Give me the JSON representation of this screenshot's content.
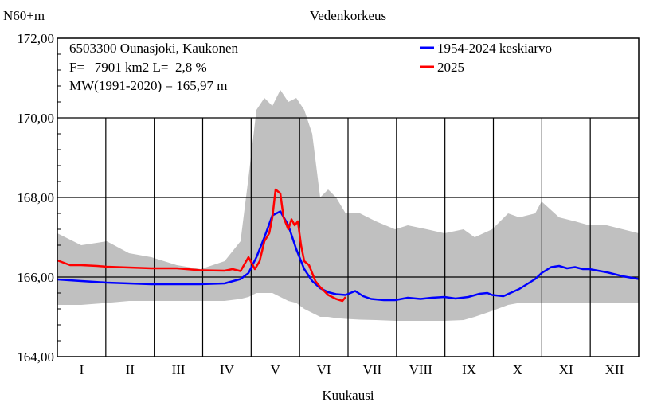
{
  "chart_data": {
    "type": "line",
    "title": "Vedenkorkeus",
    "ylabel": "N60+m",
    "xlabel": "Kuukausi",
    "ylim": [
      164,
      172
    ],
    "y_ticks": [
      "164,00",
      "166,00",
      "168,00",
      "170,00",
      "172,00"
    ],
    "y_tick_values": [
      164,
      166,
      168,
      170,
      172
    ],
    "x_range_days": [
      0,
      365
    ],
    "categories": [
      "I",
      "II",
      "III",
      "IV",
      "V",
      "VI",
      "VII",
      "VIII",
      "IX",
      "X",
      "XI",
      "XII"
    ],
    "info_lines": [
      "6503300 Ounasjoki, Kaukonen",
      "F=   7901 km2 L=  2,8 %",
      "MW(1991-2020) = 165,97 m"
    ],
    "grid": true,
    "legend_position": "top-right",
    "colors": {
      "mean": "#0000ff",
      "current": "#ff0000",
      "band": "#c0c0c0",
      "grid": "#000000"
    },
    "band_range": {
      "x": [
        0,
        15,
        31,
        45,
        59,
        75,
        90,
        105,
        115,
        120,
        125,
        130,
        135,
        140,
        145,
        150,
        155,
        160,
        165,
        170,
        175,
        181,
        190,
        200,
        212,
        220,
        232,
        243,
        255,
        262,
        273,
        283,
        290,
        300,
        304,
        315,
        325,
        334,
        345,
        355,
        365
      ],
      "min": [
        165.3,
        165.3,
        165.35,
        165.4,
        165.4,
        165.4,
        165.4,
        165.4,
        165.45,
        165.5,
        165.6,
        165.6,
        165.6,
        165.5,
        165.4,
        165.35,
        165.2,
        165.1,
        165.0,
        165.0,
        164.97,
        164.95,
        164.93,
        164.92,
        164.9,
        164.9,
        164.9,
        164.9,
        164.92,
        165.0,
        165.15,
        165.3,
        165.35,
        165.35,
        165.35,
        165.35,
        165.35,
        165.35,
        165.35,
        165.35,
        165.35
      ],
      "max": [
        167.1,
        166.8,
        166.9,
        166.6,
        166.5,
        166.3,
        166.2,
        166.4,
        166.9,
        168.5,
        170.2,
        170.5,
        170.3,
        170.7,
        170.4,
        170.5,
        170.2,
        169.6,
        168.0,
        168.2,
        168.0,
        167.6,
        167.6,
        167.4,
        167.2,
        167.3,
        167.2,
        167.1,
        167.2,
        167.0,
        167.2,
        167.6,
        167.5,
        167.6,
        167.9,
        167.5,
        167.4,
        167.3,
        167.3,
        167.2,
        167.1
      ]
    },
    "series": [
      {
        "name": "1954-2024 keskiarvo",
        "x": [
          0,
          15,
          31,
          45,
          59,
          75,
          90,
          105,
          115,
          120,
          125,
          130,
          135,
          140,
          145,
          150,
          155,
          160,
          165,
          170,
          175,
          181,
          187,
          192,
          197,
          205,
          212,
          220,
          228,
          235,
          243,
          250,
          258,
          265,
          270,
          273,
          280,
          290,
          300,
          304,
          310,
          315,
          320,
          325,
          330,
          334,
          345,
          355,
          365
        ],
        "y": [
          165.94,
          165.9,
          165.86,
          165.84,
          165.82,
          165.82,
          165.82,
          165.84,
          165.95,
          166.1,
          166.5,
          167.0,
          167.55,
          167.65,
          167.3,
          166.7,
          166.2,
          165.9,
          165.72,
          165.62,
          165.57,
          165.55,
          165.65,
          165.52,
          165.45,
          165.42,
          165.42,
          165.48,
          165.45,
          165.48,
          165.5,
          165.46,
          165.5,
          165.58,
          165.6,
          165.55,
          165.52,
          165.7,
          165.95,
          166.1,
          166.25,
          166.28,
          166.22,
          166.25,
          166.2,
          166.2,
          166.12,
          166.02,
          165.95
        ]
      },
      {
        "name": "2025",
        "x": [
          0,
          8,
          15,
          25,
          31,
          45,
          59,
          75,
          90,
          105,
          110,
          115,
          120,
          124,
          127,
          130,
          133,
          135,
          137,
          140,
          142,
          145,
          147,
          149,
          151,
          153,
          155,
          158,
          160,
          162,
          165,
          170,
          175,
          179,
          181
        ],
        "y": [
          166.42,
          166.3,
          166.3,
          166.28,
          166.26,
          166.24,
          166.22,
          166.22,
          166.17,
          166.16,
          166.2,
          166.15,
          166.5,
          166.2,
          166.4,
          166.9,
          167.1,
          167.5,
          168.2,
          168.1,
          167.5,
          167.2,
          167.45,
          167.3,
          167.4,
          166.8,
          166.4,
          166.3,
          166.1,
          165.9,
          165.75,
          165.55,
          165.45,
          165.4,
          165.5
        ]
      }
    ]
  }
}
